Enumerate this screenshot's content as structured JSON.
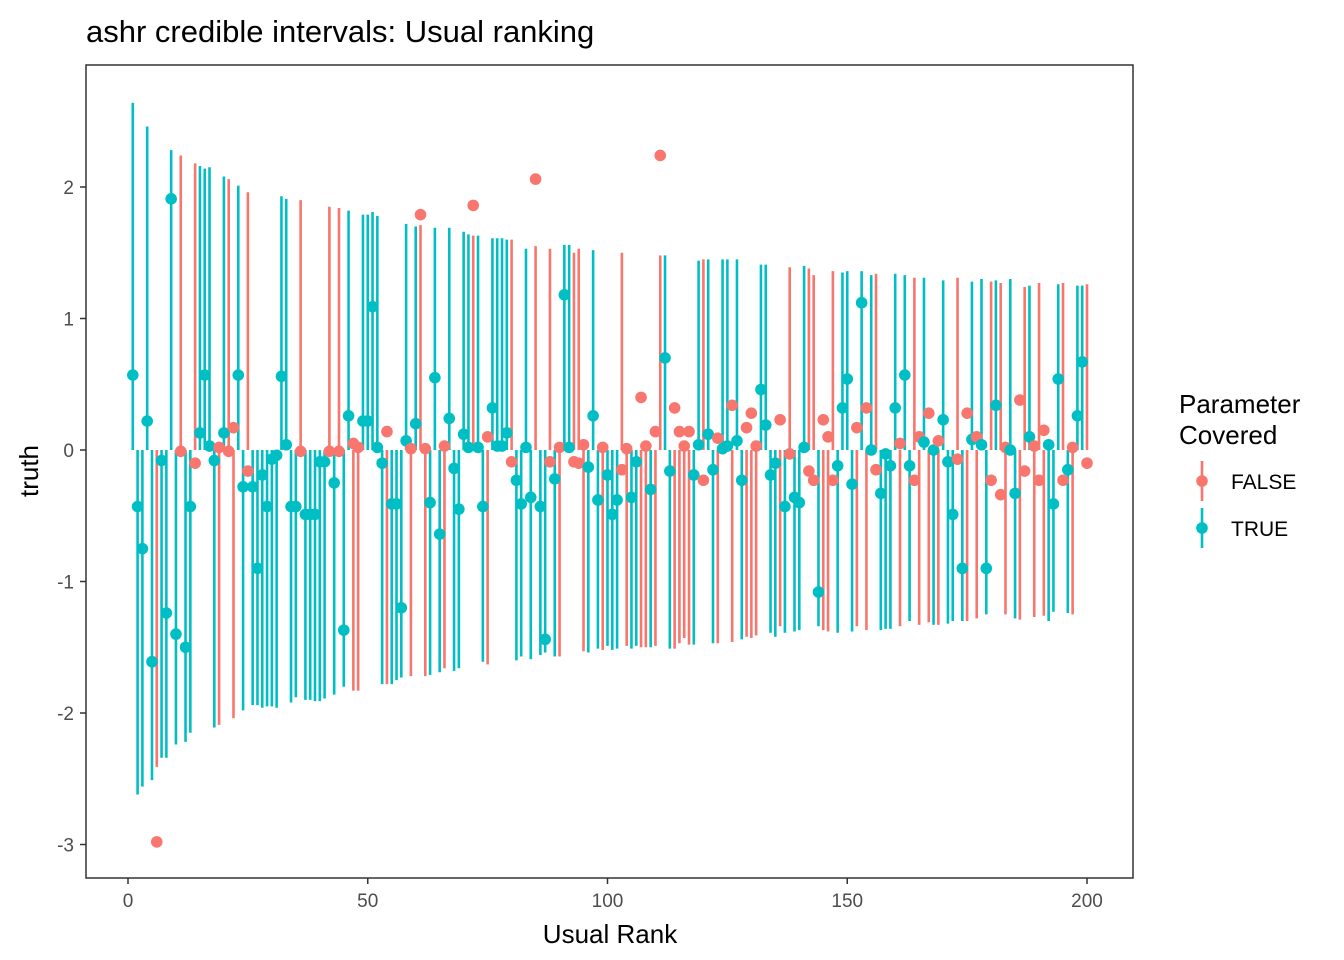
{
  "chart_data": {
    "type": "scatter",
    "title": "ashr credible intervals: Usual ranking",
    "xlabel": "Usual Rank",
    "ylabel": "truth",
    "xlim": [
      -8.8,
      209.2
    ],
    "ylim": [
      -3.24,
      2.93
    ],
    "x_ticks": [
      0,
      50,
      100,
      150,
      200
    ],
    "x_tick_labels": [
      "0",
      "50",
      "100",
      "150",
      "200"
    ],
    "y_ticks": [
      -3,
      -2,
      -1,
      0,
      1,
      2
    ],
    "y_tick_labels": [
      "-3",
      "-2",
      "-1",
      "0",
      "1",
      "2"
    ],
    "grid": false,
    "legend": {
      "title_line1": "Parameter",
      "title_line2": "Covered",
      "placement": "right",
      "entries": [
        {
          "label": "FALSE",
          "color": "#F8766D"
        },
        {
          "label": "TRUE",
          "color": "#00BFC4"
        }
      ]
    },
    "colors": {
      "FALSE": "#F8766D",
      "TRUE": "#00BFC4"
    },
    "truth": [
      0.57,
      -0.43,
      -0.75,
      0.22,
      -1.61,
      -2.98,
      -0.08,
      -1.24,
      1.91,
      -1.4,
      -0.01,
      -1.5,
      -0.43,
      -0.1,
      0.13,
      0.57,
      0.03,
      -0.08,
      0.02,
      0.13,
      -0.01,
      0.17,
      0.57,
      -0.28,
      -0.16,
      -0.28,
      -0.9,
      -0.19,
      -0.43,
      -0.07,
      -0.04,
      0.56,
      0.04,
      -0.43,
      -0.43,
      -0.01,
      -0.49,
      -0.49,
      -0.49,
      -0.09,
      -0.09,
      -0.01,
      -0.25,
      -0.01,
      -1.37,
      0.26,
      0.05,
      0.02,
      0.22,
      0.22,
      1.09,
      0.02,
      -0.1,
      0.14,
      -0.41,
      -0.41,
      -1.2,
      0.07,
      0.01,
      0.2,
      1.79,
      0.01,
      -0.4,
      0.55,
      -0.64,
      0.03,
      0.24,
      -0.14,
      -0.45,
      0.12,
      0.02,
      1.86,
      0.02,
      -0.43,
      0.1,
      0.32,
      0.03,
      0.03,
      0.13,
      -0.09,
      -0.23,
      -0.41,
      0.02,
      -0.36,
      2.06,
      -0.43,
      -1.44,
      -0.09,
      -0.22,
      0.02,
      1.18,
      0.02,
      -0.09,
      -0.1,
      0.04,
      -0.13,
      0.26,
      -0.38,
      0.02,
      -0.19,
      -0.49,
      -0.38,
      -0.15,
      0.01,
      -0.36,
      -0.09,
      0.4,
      0.03,
      -0.3,
      0.14,
      2.24,
      0.7,
      -0.16,
      0.32,
      0.14,
      0.03,
      0.14,
      -0.19,
      0.04,
      -0.23,
      0.12,
      -0.15,
      0.09,
      0.01,
      0.03,
      0.34,
      0.07,
      -0.23,
      0.17,
      0.28,
      0.03,
      0.46,
      0.19,
      -0.19,
      -0.1,
      0.23,
      -0.43,
      -0.03,
      -0.36,
      -0.4,
      0.02,
      -0.16,
      -0.23,
      -1.08,
      0.23,
      0.1,
      -0.23,
      -0.12,
      0.32,
      0.54,
      -0.26,
      0.17,
      1.12,
      0.32,
      0.0,
      -0.15,
      -0.33,
      -0.03,
      -0.12,
      0.32,
      0.05,
      0.57,
      -0.12,
      -0.23,
      0.1,
      0.06,
      0.28,
      0.0,
      0.07,
      0.23,
      -0.09,
      -0.49,
      -0.07,
      -0.9,
      0.28,
      0.08,
      0.1,
      0.04,
      -0.9,
      -0.23,
      0.34,
      -0.34,
      0.02,
      0.0,
      -0.33,
      0.38,
      -0.16,
      0.1,
      0.03,
      -0.23,
      0.15,
      0.04,
      -0.41,
      0.54,
      -0.23,
      -0.15,
      0.02,
      0.26,
      0.67,
      -0.1
    ],
    "interval_end": [
      2.64,
      -2.62,
      -2.56,
      2.46,
      -2.51,
      -2.41,
      -2.34,
      -2.34,
      2.28,
      -2.24,
      2.24,
      -2.22,
      -2.15,
      2.18,
      2.16,
      2.14,
      2.15,
      -2.11,
      -2.09,
      2.08,
      2.06,
      -2.04,
      2.01,
      -1.98,
      1.96,
      -1.94,
      -1.94,
      -1.96,
      -1.95,
      -1.95,
      -1.96,
      1.93,
      1.91,
      -1.92,
      -1.88,
      1.9,
      -1.9,
      -1.9,
      -1.91,
      -1.91,
      -1.89,
      1.85,
      -1.86,
      1.84,
      -1.8,
      1.82,
      -1.83,
      -1.83,
      1.79,
      1.79,
      1.81,
      1.78,
      -1.78,
      -1.78,
      -1.78,
      -1.75,
      -1.73,
      1.72,
      -1.72,
      1.7,
      1.71,
      -1.72,
      -1.71,
      1.69,
      -1.69,
      -1.66,
      1.69,
      -1.68,
      -1.66,
      1.66,
      1.64,
      1.63,
      1.63,
      -1.61,
      -1.63,
      1.61,
      1.61,
      1.61,
      1.6,
      1.6,
      -1.6,
      -1.57,
      1.53,
      -1.59,
      1.55,
      -1.56,
      -1.54,
      1.53,
      -1.57,
      -1.57,
      1.56,
      1.56,
      1.5,
      1.53,
      -1.53,
      -1.54,
      1.52,
      -1.51,
      -1.52,
      -1.49,
      -1.52,
      -1.51,
      1.5,
      -1.49,
      -1.51,
      -1.49,
      -1.5,
      -1.5,
      -1.5,
      -1.49,
      1.48,
      1.48,
      -1.51,
      -1.51,
      -1.47,
      -1.43,
      -1.48,
      -1.48,
      1.44,
      1.45,
      1.45,
      -1.47,
      -1.47,
      1.45,
      1.45,
      -1.46,
      1.45,
      -1.44,
      -1.42,
      -1.43,
      -1.41,
      1.41,
      1.41,
      -1.39,
      -1.42,
      -1.34,
      -1.39,
      1.39,
      -1.38,
      -1.37,
      1.4,
      1.38,
      1.33,
      -1.34,
      -1.37,
      -1.38,
      1.36,
      -1.39,
      1.35,
      1.36,
      -1.38,
      -1.34,
      1.36,
      -1.37,
      1.33,
      1.34,
      -1.37,
      -1.36,
      -1.36,
      1.34,
      -1.34,
      1.33,
      -1.3,
      1.31,
      -1.33,
      1.31,
      -1.31,
      -1.33,
      -1.33,
      1.29,
      -1.32,
      -1.3,
      1.31,
      -1.3,
      -1.3,
      1.28,
      -1.28,
      1.3,
      -1.25,
      1.28,
      1.29,
      1.27,
      -1.25,
      1.3,
      -1.28,
      -1.29,
      1.24,
      1.25,
      -1.27,
      1.27,
      -1.26,
      -1.3,
      -1.23,
      1.26,
      1.27,
      -1.24,
      -1.25,
      1.25,
      1.25,
      1.26
    ],
    "interval_start": 0,
    "uncovered_ranks": [
      6,
      11,
      14,
      19,
      21,
      22,
      25,
      36,
      42,
      44,
      47,
      48,
      54,
      59,
      61,
      62,
      66,
      72,
      75,
      80,
      85,
      88,
      90,
      93,
      94,
      95,
      99,
      103,
      104,
      107,
      108,
      110,
      111,
      114,
      115,
      116,
      117,
      120,
      123,
      126,
      129,
      130,
      131,
      136,
      138,
      142,
      143,
      145,
      146,
      147,
      152,
      154,
      156,
      161,
      164,
      165,
      167,
      169,
      173,
      175,
      177,
      180,
      182,
      183,
      186,
      187,
      189,
      190,
      191,
      195,
      197,
      200
    ]
  }
}
